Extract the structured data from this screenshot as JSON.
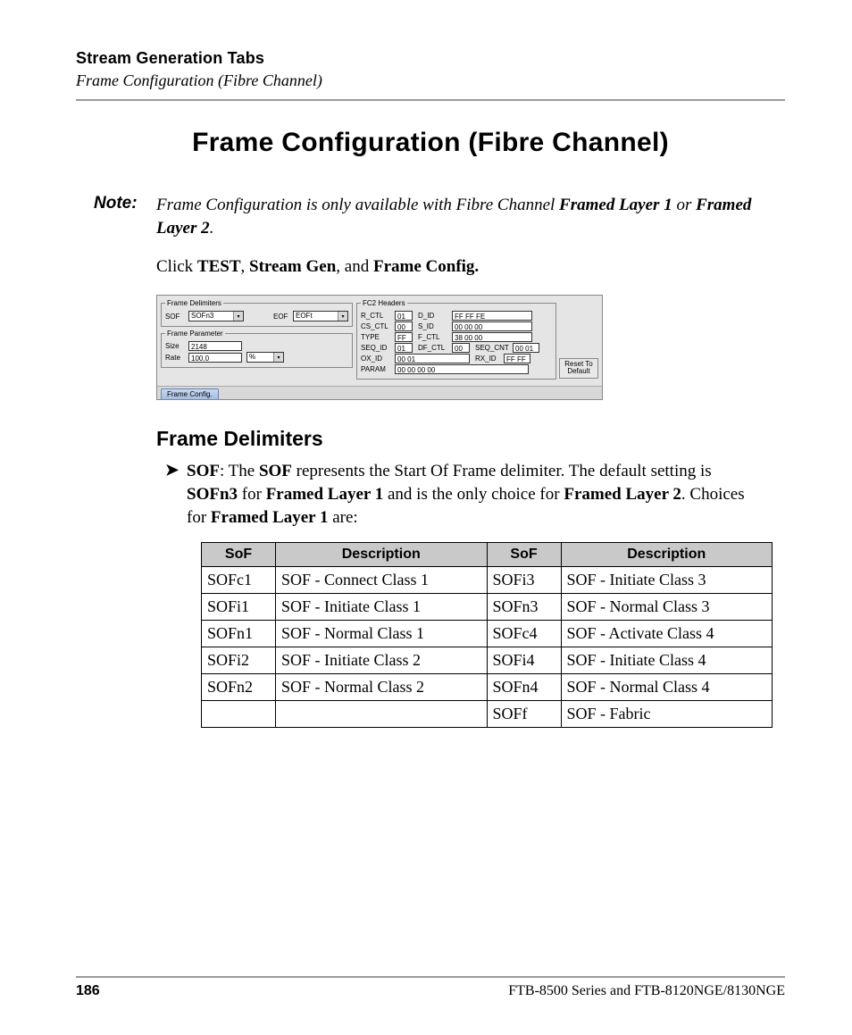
{
  "header": {
    "title": "Stream Generation Tabs",
    "subtitle": "Frame Configuration (Fibre Channel)"
  },
  "main_title": "Frame Configuration (Fibre Channel)",
  "note": {
    "label": "Note:",
    "text_pre": "Frame Configuration is only available with Fibre Channel ",
    "b1": "Framed Layer 1",
    "mid": " or ",
    "b2": "Framed Layer 2",
    "post": "."
  },
  "instruction": {
    "pre": "Click ",
    "b1": "TEST",
    "sep1": ", ",
    "b2": "Stream Gen",
    "sep2": ", and ",
    "b3": "Frame Config."
  },
  "ui": {
    "fd_legend": "Frame Delimiters",
    "sof_lbl": "SOF",
    "sof_val": "SOFn3",
    "eof_lbl": "EOF",
    "eof_val": "EOFt",
    "fp_legend": "Frame Parameter",
    "size_lbl": "Size",
    "size_val": "2148",
    "rate_lbl": "Rate",
    "rate_val": "100.0",
    "rate_unit": "%",
    "fc2_legend": "FC2 Headers",
    "r_ctl_lbl": "R_CTL",
    "r_ctl_val": "01",
    "d_id_lbl": "D_ID",
    "d_id_val": "FF FF FE",
    "cs_ctl_lbl": "CS_CTL",
    "cs_ctl_val": "00",
    "s_id_lbl": "S_ID",
    "s_id_val": "00 00 00",
    "type_lbl": "TYPE",
    "type_val": "FF",
    "f_ctl_lbl": "F_CTL",
    "f_ctl_val": "38 00 00",
    "seq_id_lbl": "SEQ_ID",
    "seq_id_val": "01",
    "df_ctl_lbl": "DF_CTL",
    "df_ctl_val": "00",
    "seq_cnt_lbl": "SEQ_CNT",
    "seq_cnt_val": "00 01",
    "ox_id_lbl": "OX_ID",
    "ox_id_val": "00 01",
    "rx_id_lbl": "RX_ID",
    "rx_id_val": "FF FF",
    "param_lbl": "PARAM",
    "param_val": "00 00 00 00",
    "reset_btn": "Reset To Default",
    "tab": "Frame Config."
  },
  "section_title": "Frame Delimiters",
  "bullet": {
    "mark": "➤",
    "b1": "SOF",
    "t1": ": The ",
    "b2": "SOF",
    "t2": " represents the Start Of Frame delimiter. The default setting is ",
    "b3": "SOFn3",
    "t3": " for ",
    "b4": "Framed Layer 1",
    "t4": " and is the only choice for ",
    "b5": "Framed Layer 2",
    "t5": ". Choices for ",
    "b6": "Framed Layer 1",
    "t6": " are:"
  },
  "table": {
    "h1": "SoF",
    "h2": "Description",
    "h3": "SoF",
    "h4": "Description",
    "rows": [
      [
        "SOFc1",
        "SOF - Connect Class 1",
        "SOFi3",
        "SOF - Initiate Class 3"
      ],
      [
        "SOFi1",
        "SOF - Initiate Class 1",
        "SOFn3",
        "SOF - Normal Class 3"
      ],
      [
        "SOFn1",
        "SOF - Normal Class 1",
        "SOFc4",
        "SOF - Activate Class 4"
      ],
      [
        "SOFi2",
        "SOF - Initiate Class 2",
        "SOFi4",
        "SOF - Initiate Class 4"
      ],
      [
        "SOFn2",
        "SOF - Normal Class 2",
        "SOFn4",
        "SOF - Normal Class 4"
      ],
      [
        "",
        "",
        "SOFf",
        "SOF - Fabric"
      ]
    ]
  },
  "footer": {
    "page": "186",
    "doc": "FTB-8500 Series and FTB-8120NGE/8130NGE"
  }
}
